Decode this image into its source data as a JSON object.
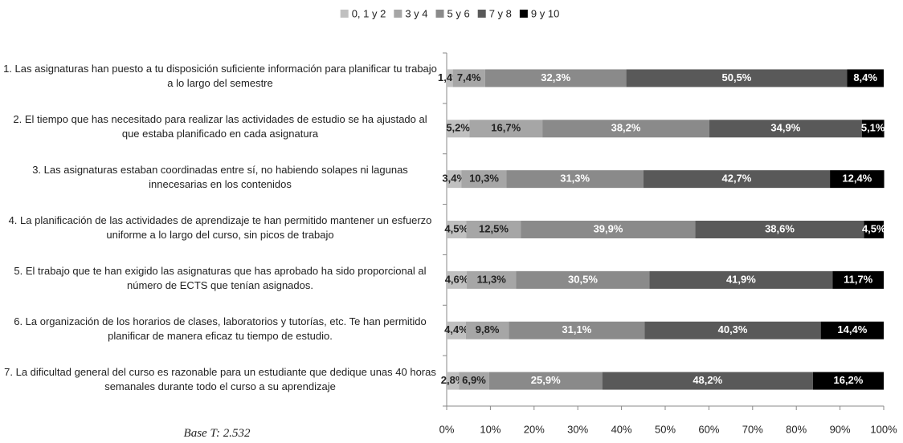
{
  "chart_data": {
    "type": "stacked-bar-horizontal",
    "categories": [
      "1. Las asignaturas han puesto a tu disposición suficiente información para planificar tu trabajo a lo largo del semestre",
      "2. El tiempo que has necesitado para realizar las actividades de estudio se ha ajustado al que estaba planificado en cada asignatura",
      "3. Las asignaturas estaban coordinadas entre sí, no habiendo solapes ni lagunas innecesarias en los contenidos",
      "4. La planificación de las actividades de aprendizaje te han permitido mantener un esfuerzo uniforme a lo largo del curso, sin picos de trabajo",
      "5. El trabajo que te han exigido las asignaturas que has aprobado ha sido proporcional al número de ECTS que tenían asignados.",
      "6. La organización de los horarios de clases, laboratorios y tutorías, etc. Te han permitido planificar de manera eficaz tu tiempo de estudio.",
      "7. La dificultad general del curso es razonable para un estudiante que dedique unas 40 horas semanales durante todo el curso a su aprendizaje"
    ],
    "series": [
      {
        "name": "0, 1 y 2",
        "color": "#c0c0c0",
        "values": [
          1.4,
          5.2,
          3.4,
          4.5,
          4.6,
          4.4,
          2.8
        ],
        "value_labels": [
          "1,4%",
          "5,2%",
          "3,4%",
          "4,5%",
          "4,6%",
          "4,4%",
          "2,8%"
        ]
      },
      {
        "name": "3 y 4",
        "color": "#a6a6a6",
        "values": [
          7.4,
          16.7,
          10.3,
          12.5,
          11.3,
          9.8,
          6.9
        ],
        "value_labels": [
          "7,4%",
          "16,7%",
          "10,3%",
          "12,5%",
          "11,3%",
          "9,8%",
          "6,9%"
        ]
      },
      {
        "name": "5 y 6",
        "color": "#8a8a8a",
        "values": [
          32.3,
          38.2,
          31.3,
          39.9,
          30.5,
          31.1,
          25.9
        ],
        "value_labels": [
          "32,3%",
          "38,2%",
          "31,3%",
          "39,9%",
          "30,5%",
          "31,1%",
          "25,9%"
        ]
      },
      {
        "name": "7 y 8",
        "color": "#595959",
        "values": [
          50.5,
          34.9,
          42.7,
          38.6,
          41.9,
          40.3,
          48.2
        ],
        "value_labels": [
          "50,5%",
          "34,9%",
          "42,7%",
          "38,6%",
          "41,9%",
          "40,3%",
          "48,2%"
        ]
      },
      {
        "name": "9 y 10",
        "color": "#000000",
        "values": [
          8.4,
          5.1,
          12.4,
          4.5,
          11.7,
          14.4,
          16.2
        ],
        "value_labels": [
          "8,4%",
          "5,1%",
          "12,4%",
          "4,5%",
          "11,7%",
          "14,4%",
          "16,2%"
        ]
      }
    ],
    "xlim": [
      0,
      100
    ],
    "xticks": [
      {
        "value": 0,
        "label": "0%"
      },
      {
        "value": 10,
        "label": "10%"
      },
      {
        "value": 20,
        "label": "20%"
      },
      {
        "value": 30,
        "label": "30%"
      },
      {
        "value": 40,
        "label": "40%"
      },
      {
        "value": 50,
        "label": "50%"
      },
      {
        "value": 60,
        "label": "60%"
      },
      {
        "value": 70,
        "label": "70%"
      },
      {
        "value": 80,
        "label": "80%"
      },
      {
        "value": 90,
        "label": "90%"
      },
      {
        "value": 100,
        "label": "100%"
      }
    ],
    "legend": "top",
    "annotation": "Base T: 2.532"
  }
}
